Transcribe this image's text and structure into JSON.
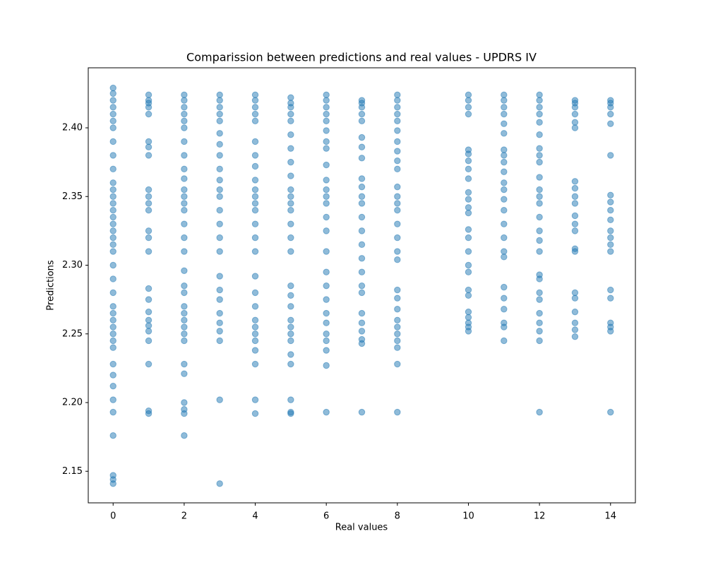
{
  "chart_data": {
    "type": "scatter",
    "title": "Comparission between predictions and real values - UPDRS IV",
    "x_label": "Real values",
    "y_label": "Predictions",
    "color": "#1f77b4",
    "alpha": 0.5,
    "xlim": [
      -0.7,
      14.7
    ],
    "ylim": [
      2.127,
      2.4437
    ],
    "xticks": [
      0,
      2,
      4,
      6,
      8,
      10,
      12,
      14
    ],
    "yticks": [
      2.15,
      {
        "value": 2.2,
        "label": "2.20"
      },
      2.25,
      {
        "value": 2.3,
        "label": "2.30"
      },
      2.35,
      {
        "value": 2.4,
        "label": "2.40"
      }
    ],
    "x": [
      0,
      0,
      0,
      0,
      0,
      0,
      0,
      0,
      0,
      0,
      0,
      0,
      0,
      0,
      0,
      0,
      0,
      0,
      0,
      0,
      0,
      0,
      0,
      0,
      0,
      0,
      0,
      0,
      0,
      0,
      0,
      0,
      0,
      0,
      0,
      0,
      0,
      0,
      0,
      0,
      1,
      1,
      1,
      1,
      1,
      1,
      1,
      1,
      1,
      1,
      1,
      1,
      1,
      1,
      1,
      1,
      1,
      1,
      1,
      1,
      1,
      1,
      1,
      1,
      1,
      2,
      2,
      2,
      2,
      2,
      2,
      2,
      2,
      2,
      2,
      2,
      2,
      2,
      2,
      2,
      2,
      2,
      2,
      2,
      2,
      2,
      2,
      2,
      2,
      2,
      2,
      2,
      2,
      2,
      2,
      2,
      2,
      3,
      3,
      3,
      3,
      3,
      3,
      3,
      3,
      3,
      3,
      3,
      3,
      3,
      3,
      3,
      3,
      3,
      3,
      3,
      3,
      3,
      3,
      3,
      3,
      3,
      4,
      4,
      4,
      4,
      4,
      4,
      4,
      4,
      4,
      4,
      4,
      4,
      4,
      4,
      4,
      4,
      4,
      4,
      4,
      4,
      4,
      4,
      4,
      4,
      4,
      4,
      4,
      5,
      5,
      5,
      5,
      5,
      5,
      5,
      5,
      5,
      5,
      5,
      5,
      5,
      5,
      5,
      5,
      5,
      5,
      5,
      5,
      5,
      5,
      5,
      5,
      5,
      5,
      5,
      5,
      6,
      6,
      6,
      6,
      6,
      6,
      6,
      6,
      6,
      6,
      6,
      6,
      6,
      6,
      6,
      6,
      6,
      6,
      6,
      6,
      6,
      6,
      6,
      6,
      6,
      6,
      7,
      7,
      7,
      7,
      7,
      7,
      7,
      7,
      7,
      7,
      7,
      7,
      7,
      7,
      7,
      7,
      7,
      7,
      7,
      7,
      7,
      7,
      7,
      7,
      7,
      8,
      8,
      8,
      8,
      8,
      8,
      8,
      8,
      8,
      8,
      8,
      8,
      8,
      8,
      8,
      8,
      8,
      8,
      8,
      8,
      8,
      8,
      8,
      8,
      8,
      8,
      8,
      8,
      10,
      10,
      10,
      10,
      10,
      10,
      10,
      10,
      10,
      10,
      10,
      10,
      10,
      10,
      10,
      10,
      10,
      10,
      10,
      10,
      10,
      10,
      10,
      10,
      10,
      11,
      11,
      11,
      11,
      11,
      11,
      11,
      11,
      11,
      11,
      11,
      11,
      11,
      11,
      11,
      11,
      11,
      11,
      11,
      11,
      11,
      11,
      11,
      11,
      12,
      12,
      12,
      12,
      12,
      12,
      12,
      12,
      12,
      12,
      12,
      12,
      12,
      12,
      12,
      12,
      12,
      12,
      12,
      12,
      12,
      12,
      12,
      12,
      12,
      12,
      13,
      13,
      13,
      13,
      13,
      13,
      13,
      13,
      13,
      13,
      13,
      13,
      13,
      13,
      13,
      13,
      13,
      13,
      13,
      13,
      13,
      14,
      14,
      14,
      14,
      14,
      14,
      14,
      14,
      14,
      14,
      14,
      14,
      14,
      14,
      14,
      14,
      14,
      14,
      14,
      14
    ],
    "y": [
      2.429,
      2.425,
      2.42,
      2.415,
      2.41,
      2.405,
      2.4,
      2.39,
      2.38,
      2.37,
      2.36,
      2.355,
      2.35,
      2.345,
      2.34,
      2.335,
      2.33,
      2.325,
      2.32,
      2.315,
      2.31,
      2.3,
      2.29,
      2.28,
      2.27,
      2.265,
      2.26,
      2.255,
      2.25,
      2.245,
      2.24,
      2.228,
      2.22,
      2.212,
      2.202,
      2.193,
      2.176,
      2.147,
      2.144,
      2.141,
      2.424,
      2.42,
      2.418,
      2.415,
      2.41,
      2.39,
      2.386,
      2.38,
      2.355,
      2.35,
      2.345,
      2.34,
      2.325,
      2.32,
      2.31,
      2.283,
      2.275,
      2.266,
      2.26,
      2.256,
      2.252,
      2.245,
      2.228,
      2.194,
      2.192,
      2.424,
      2.42,
      2.415,
      2.41,
      2.405,
      2.4,
      2.39,
      2.38,
      2.37,
      2.363,
      2.355,
      2.35,
      2.345,
      2.34,
      2.33,
      2.32,
      2.31,
      2.296,
      2.285,
      2.28,
      2.27,
      2.265,
      2.26,
      2.255,
      2.25,
      2.245,
      2.228,
      2.221,
      2.2,
      2.195,
      2.192,
      2.176,
      2.424,
      2.42,
      2.415,
      2.41,
      2.405,
      2.396,
      2.388,
      2.38,
      2.37,
      2.362,
      2.355,
      2.35,
      2.34,
      2.33,
      2.32,
      2.31,
      2.292,
      2.282,
      2.275,
      2.265,
      2.258,
      2.252,
      2.245,
      2.202,
      2.141,
      2.424,
      2.42,
      2.415,
      2.41,
      2.405,
      2.39,
      2.38,
      2.372,
      2.362,
      2.355,
      2.35,
      2.345,
      2.34,
      2.33,
      2.32,
      2.31,
      2.292,
      2.28,
      2.27,
      2.26,
      2.255,
      2.25,
      2.245,
      2.238,
      2.228,
      2.202,
      2.192,
      2.422,
      2.418,
      2.415,
      2.41,
      2.405,
      2.395,
      2.385,
      2.375,
      2.365,
      2.355,
      2.35,
      2.345,
      2.34,
      2.33,
      2.32,
      2.31,
      2.285,
      2.278,
      2.27,
      2.26,
      2.255,
      2.25,
      2.245,
      2.235,
      2.228,
      2.202,
      2.193,
      2.192,
      2.424,
      2.42,
      2.415,
      2.41,
      2.405,
      2.398,
      2.39,
      2.385,
      2.373,
      2.362,
      2.355,
      2.35,
      2.345,
      2.335,
      2.325,
      2.31,
      2.295,
      2.285,
      2.275,
      2.265,
      2.258,
      2.25,
      2.245,
      2.238,
      2.227,
      2.193,
      2.42,
      2.418,
      2.415,
      2.41,
      2.405,
      2.393,
      2.386,
      2.378,
      2.363,
      2.357,
      2.35,
      2.345,
      2.335,
      2.325,
      2.315,
      2.305,
      2.295,
      2.285,
      2.28,
      2.265,
      2.258,
      2.252,
      2.246,
      2.243,
      2.193,
      2.424,
      2.42,
      2.415,
      2.41,
      2.405,
      2.398,
      2.39,
      2.383,
      2.376,
      2.37,
      2.357,
      2.35,
      2.345,
      2.34,
      2.33,
      2.32,
      2.31,
      2.304,
      2.282,
      2.276,
      2.268,
      2.26,
      2.255,
      2.25,
      2.245,
      2.24,
      2.228,
      2.193,
      2.424,
      2.42,
      2.415,
      2.41,
      2.384,
      2.381,
      2.376,
      2.37,
      2.363,
      2.353,
      2.348,
      2.342,
      2.338,
      2.326,
      2.32,
      2.31,
      2.3,
      2.295,
      2.282,
      2.278,
      2.266,
      2.262,
      2.258,
      2.255,
      2.252,
      2.424,
      2.42,
      2.415,
      2.41,
      2.403,
      2.396,
      2.384,
      2.38,
      2.375,
      2.368,
      2.36,
      2.355,
      2.348,
      2.34,
      2.33,
      2.32,
      2.31,
      2.306,
      2.284,
      2.276,
      2.268,
      2.258,
      2.255,
      2.245,
      2.424,
      2.42,
      2.415,
      2.41,
      2.404,
      2.395,
      2.385,
      2.38,
      2.375,
      2.364,
      2.355,
      2.35,
      2.345,
      2.335,
      2.325,
      2.318,
      2.31,
      2.293,
      2.29,
      2.28,
      2.275,
      2.265,
      2.258,
      2.252,
      2.245,
      2.193,
      2.42,
      2.418,
      2.415,
      2.41,
      2.404,
      2.4,
      2.361,
      2.356,
      2.35,
      2.345,
      2.336,
      2.33,
      2.325,
      2.312,
      2.31,
      2.28,
      2.276,
      2.266,
      2.258,
      2.253,
      2.248,
      2.42,
      2.418,
      2.415,
      2.41,
      2.403,
      2.38,
      2.351,
      2.346,
      2.34,
      2.333,
      2.325,
      2.32,
      2.315,
      2.31,
      2.282,
      2.276,
      2.258,
      2.255,
      2.252,
      2.193
    ]
  }
}
